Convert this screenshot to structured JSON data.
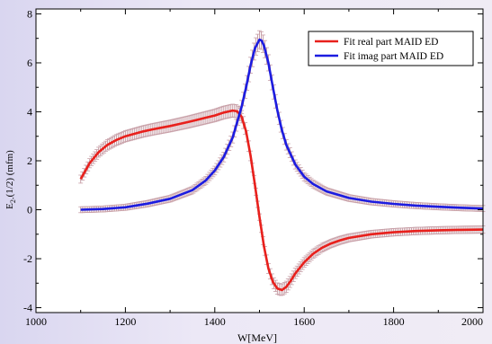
{
  "chart_data": {
    "type": "line",
    "xlabel": "W[MeV]",
    "ylabel": "E",
    "ylabel_sub": "2-",
    "ylabel_rest": "(1/2) (mfm)",
    "xlim": [
      1000,
      2000
    ],
    "ylim": [
      -4.2,
      8.2
    ],
    "x_ticks": [
      1000,
      1200,
      1400,
      1600,
      1800,
      2000
    ],
    "y_ticks": [
      -4,
      -2,
      0,
      2,
      4,
      6,
      8
    ],
    "grid": false,
    "legend_position": "top-right",
    "series": [
      {
        "name": "Fit real part MAID ED",
        "color": "#e8201c",
        "x": [
          1100,
          1120,
          1140,
          1160,
          1180,
          1200,
          1220,
          1240,
          1260,
          1280,
          1300,
          1320,
          1340,
          1360,
          1380,
          1400,
          1420,
          1440,
          1450,
          1460,
          1470,
          1480,
          1490,
          1500,
          1510,
          1520,
          1530,
          1540,
          1550,
          1560,
          1570,
          1580,
          1600,
          1620,
          1640,
          1660,
          1680,
          1700,
          1750,
          1800,
          1850,
          1900,
          1950,
          2000
        ],
        "values": [
          1.25,
          1.9,
          2.35,
          2.65,
          2.85,
          3.0,
          3.1,
          3.2,
          3.28,
          3.35,
          3.42,
          3.5,
          3.58,
          3.67,
          3.76,
          3.85,
          3.97,
          4.05,
          4.02,
          3.8,
          3.2,
          2.2,
          1.0,
          -0.3,
          -1.5,
          -2.4,
          -2.95,
          -3.22,
          -3.28,
          -3.15,
          -2.9,
          -2.6,
          -2.15,
          -1.8,
          -1.55,
          -1.38,
          -1.25,
          -1.15,
          -1.0,
          -0.92,
          -0.87,
          -0.84,
          -0.82,
          -0.81
        ]
      },
      {
        "name": "Fit imag part MAID ED",
        "color": "#1c1ce0",
        "x": [
          1100,
          1150,
          1200,
          1250,
          1300,
          1350,
          1380,
          1400,
          1420,
          1440,
          1460,
          1470,
          1480,
          1490,
          1500,
          1505,
          1510,
          1520,
          1530,
          1540,
          1550,
          1560,
          1580,
          1600,
          1620,
          1650,
          1700,
          1750,
          1800,
          1850,
          1900,
          1950,
          2000
        ],
        "values": [
          0.0,
          0.03,
          0.1,
          0.25,
          0.45,
          0.8,
          1.2,
          1.6,
          2.15,
          2.95,
          4.2,
          5.0,
          5.9,
          6.6,
          6.95,
          6.9,
          6.7,
          6.0,
          5.0,
          4.05,
          3.25,
          2.65,
          1.85,
          1.35,
          1.05,
          0.75,
          0.48,
          0.33,
          0.24,
          0.17,
          0.12,
          0.08,
          0.05
        ]
      }
    ]
  }
}
